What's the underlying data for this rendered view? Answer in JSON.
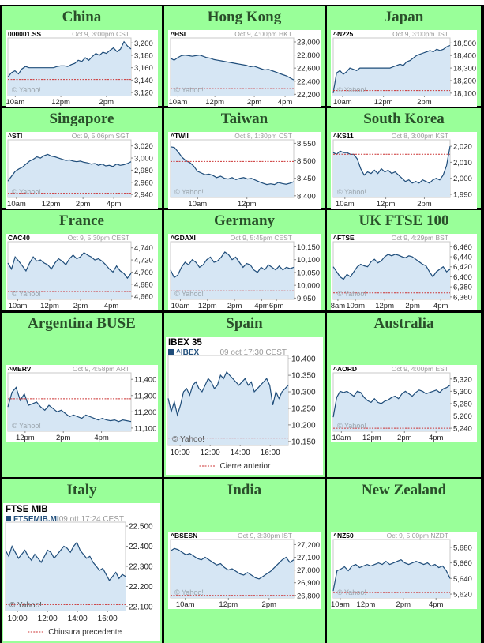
{
  "charts": [
    {
      "region": "China",
      "symbol": "000001.SS",
      "date": "Oct 9, 3:00pm CST",
      "yticks": [
        "3,200",
        "3,180",
        "3,160",
        "3,140",
        "3,120"
      ],
      "ytick_vals": [
        3200,
        3180,
        3160,
        3140,
        3120
      ],
      "ylim": [
        3115,
        3208
      ],
      "xticks": [
        "10am",
        "12pm",
        "2pm"
      ],
      "xtick_pos": [
        0.06,
        0.43,
        0.8
      ],
      "prev_close": 3141,
      "watermark": "© Yahoo!",
      "values": [
        3145,
        3152,
        3155,
        3150,
        3158,
        3162,
        3160,
        3160,
        3160,
        3160,
        3160,
        3160,
        3160,
        3160,
        3162,
        3163,
        3163,
        3162,
        3165,
        3167,
        3172,
        3170,
        3176,
        3172,
        3178,
        3183,
        3180,
        3185,
        3183,
        3188,
        3192,
        3186,
        3190,
        3202,
        3195,
        3190
      ]
    },
    {
      "region": "Hong Kong",
      "symbol": "^HSI",
      "date": "Oct 9, 4:00pm HKT",
      "yticks": [
        "23,000",
        "22,800",
        "22,600",
        "22,400",
        "22,200"
      ],
      "ytick_vals": [
        23000,
        22800,
        22600,
        22400,
        22200
      ],
      "ylim": [
        22180,
        23060
      ],
      "xticks": [
        "10am",
        "12pm",
        "2pm",
        "4pm"
      ],
      "xtick_pos": [
        0.06,
        0.36,
        0.68,
        0.93
      ],
      "prev_close": 22290,
      "watermark": "© Yahoo!",
      "values": [
        22750,
        22720,
        22760,
        22790,
        22800,
        22790,
        22780,
        22790,
        22800,
        22780,
        22760,
        22750,
        22730,
        22720,
        22710,
        22700,
        22690,
        22680,
        22670,
        22660,
        22650,
        22640,
        22620,
        22630,
        22610,
        22590,
        22570,
        22580,
        22560,
        22540,
        22520,
        22500,
        22480,
        22450,
        22420
      ]
    },
    {
      "region": "Japan",
      "symbol": "^N225",
      "date": "Oct 9, 3:00pm JST",
      "yticks": [
        "18,500",
        "18,400",
        "18,300",
        "18,200",
        "18,100"
      ],
      "ytick_vals": [
        18500,
        18400,
        18300,
        18200,
        18100
      ],
      "ylim": [
        18080,
        18540
      ],
      "xticks": [
        "10am",
        "12pm",
        "2pm"
      ],
      "xtick_pos": [
        0.08,
        0.43,
        0.78
      ],
      "prev_close": 18120,
      "watermark": "© Yahoo!",
      "values": [
        18100,
        18260,
        18280,
        18250,
        18270,
        18300,
        18290,
        18280,
        18300,
        18300,
        18300,
        18300,
        18300,
        18300,
        18300,
        18300,
        18300,
        18300,
        18310,
        18320,
        18330,
        18320,
        18350,
        18360,
        18380,
        18400,
        18410,
        18420,
        18430,
        18440,
        18430,
        18450,
        18440,
        18450,
        18470,
        18480
      ]
    },
    {
      "region": "Singapore",
      "symbol": "^STI",
      "date": "Oct 9, 5:06pm SGT",
      "yticks": [
        "3,020",
        "3,000",
        "2,980",
        "2,960",
        "2,940"
      ],
      "ytick_vals": [
        3020,
        3000,
        2980,
        2960,
        2940
      ],
      "ylim": [
        2935,
        3030
      ],
      "xticks": [
        "10am",
        "12pm",
        "2pm",
        "4pm"
      ],
      "xtick_pos": [
        0.07,
        0.35,
        0.61,
        0.86
      ],
      "prev_close": 2942,
      "watermark": "© Yahoo!",
      "values": [
        2962,
        2970,
        2978,
        2982,
        2985,
        2990,
        2995,
        2998,
        3002,
        3000,
        3004,
        3006,
        3003,
        3002,
        3000,
        2998,
        2996,
        2997,
        2995,
        2994,
        2995,
        2993,
        2992,
        2990,
        2991,
        2988,
        2990,
        2987,
        2988,
        2986,
        2990,
        2988,
        2989,
        2991,
        2994
      ]
    },
    {
      "region": "Taiwan",
      "symbol": "^TWII",
      "date": "Oct 8, 1:30pm CST",
      "yticks": [
        "8,550",
        "8,500",
        "8,450",
        "8,400"
      ],
      "ytick_vals": [
        8550,
        8500,
        8450,
        8400
      ],
      "ylim": [
        8395,
        8560
      ],
      "xticks": [
        "10am",
        "12pm"
      ],
      "xtick_pos": [
        0.22,
        0.62
      ],
      "prev_close": 8498,
      "watermark": "© Yahoo!",
      "values": [
        8540,
        8538,
        8525,
        8510,
        8500,
        8495,
        8485,
        8470,
        8465,
        8460,
        8462,
        8458,
        8452,
        8456,
        8450,
        8448,
        8452,
        8446,
        8450,
        8452,
        8448,
        8450,
        8445,
        8440,
        8436,
        8432,
        8434,
        8432,
        8438,
        8435,
        8433,
        8436,
        8440
      ]
    },
    {
      "region": "South Korea",
      "symbol": "^KS11",
      "date": "Oct 8, 3:00pm KST",
      "yticks": [
        "2,020",
        "2,010",
        "2,000",
        "1,990"
      ],
      "ytick_vals": [
        2020,
        2010,
        2000,
        1990
      ],
      "ylim": [
        1988,
        2024
      ],
      "xticks": [
        "10am",
        "12pm",
        "2pm"
      ],
      "xtick_pos": [
        0.1,
        0.45,
        0.78
      ],
      "prev_close": 2015,
      "watermark": "© Yahoo!",
      "values": [
        2016,
        2015,
        2017,
        2016,
        2016,
        2015,
        2015,
        2012,
        2006,
        2002,
        2004,
        2003,
        2005,
        2003,
        2006,
        2004,
        2005,
        2003,
        2004,
        2002,
        2000,
        1998,
        1999,
        1997,
        1998,
        1997,
        1999,
        1998,
        1997,
        1999,
        2000,
        1999,
        2002,
        2008,
        2020
      ]
    },
    {
      "region": "France",
      "symbol": "CAC40",
      "date": "Oct 9, 5:30pm CEST",
      "yticks": [
        "4,740",
        "4,720",
        "4,700",
        "4,680",
        "4,660"
      ],
      "ytick_vals": [
        4740,
        4720,
        4700,
        4680,
        4660
      ],
      "ylim": [
        4655,
        4750
      ],
      "xticks": [
        "10am",
        "12pm",
        "2pm",
        "4pm"
      ],
      "xtick_pos": [
        0.08,
        0.34,
        0.59,
        0.84
      ],
      "prev_close": 4668,
      "watermark": "© Yahoo!",
      "values": [
        4715,
        4705,
        4725,
        4718,
        4710,
        4702,
        4715,
        4725,
        4718,
        4720,
        4715,
        4712,
        4705,
        4715,
        4722,
        4718,
        4712,
        4722,
        4728,
        4722,
        4725,
        4732,
        4728,
        4725,
        4720,
        4722,
        4718,
        4712,
        4705,
        4700,
        4710,
        4702,
        4698,
        4690,
        4698
      ]
    },
    {
      "region": "Germany",
      "symbol": "^GDAXI",
      "date": "Oct 9, 5:45pm CEST",
      "yticks": [
        "10,150",
        "10,100",
        "10,050",
        "10,000",
        "9,950"
      ],
      "ytick_vals": [
        10150,
        10100,
        10050,
        10000,
        9950
      ],
      "ylim": [
        9945,
        10170
      ],
      "xticks": [
        "10am",
        "12pm",
        "2pm",
        "4pm",
        "6pm"
      ],
      "xtick_pos": [
        0.08,
        0.3,
        0.52,
        0.74,
        0.86
      ],
      "prev_close": 9978,
      "watermark": "© Yahoo!",
      "values": [
        10060,
        10030,
        10040,
        10070,
        10090,
        10080,
        10100,
        10090,
        10070,
        10080,
        10100,
        10110,
        10090,
        10095,
        10110,
        10130,
        10120,
        10100,
        10110,
        10090,
        10070,
        10085,
        10080,
        10060,
        10050,
        10070,
        10060,
        10080,
        10070,
        10060,
        10075,
        10060,
        10070,
        10065,
        10070
      ]
    },
    {
      "region": "UK FTSE 100",
      "symbol": "^FTSE",
      "date": "Oct 9, 4:29pm BST",
      "yticks": [
        "6,460",
        "6,440",
        "6,420",
        "6,400",
        "6,380",
        "6,360"
      ],
      "ytick_vals": [
        6460,
        6440,
        6420,
        6400,
        6380,
        6360
      ],
      "ylim": [
        6355,
        6470
      ],
      "xticks": [
        "8am",
        "10am",
        "12pm",
        "2pm",
        "4pm"
      ],
      "xtick_pos": [
        0.04,
        0.19,
        0.44,
        0.68,
        0.92
      ],
      "prev_close": 6368,
      "watermark": "© Yahoo!",
      "values": [
        6420,
        6410,
        6400,
        6395,
        6405,
        6400,
        6410,
        6420,
        6425,
        6422,
        6420,
        6430,
        6435,
        6428,
        6432,
        6440,
        6445,
        6442,
        6445,
        6443,
        6440,
        6438,
        6442,
        6440,
        6435,
        6430,
        6425,
        6422,
        6410,
        6400,
        6410,
        6415,
        6420,
        6410,
        6415
      ]
    },
    {
      "region": "Argentina BUSE",
      "symbol": "^MERV",
      "date": "Oct 9, 4:58pm ART",
      "yticks": [
        "11,400",
        "11,300",
        "11,200",
        "11,100"
      ],
      "ytick_vals": [
        11400,
        11300,
        11200,
        11100
      ],
      "ylim": [
        11080,
        11440
      ],
      "xticks": [
        "12pm",
        "2pm",
        "4pm"
      ],
      "xtick_pos": [
        0.14,
        0.45,
        0.76
      ],
      "prev_close": 11280,
      "watermark": "© Yahoo!",
      "values": [
        11230,
        11320,
        11350,
        11270,
        11310,
        11240,
        11250,
        11260,
        11230,
        11210,
        11240,
        11220,
        11200,
        11210,
        11190,
        11170,
        11180,
        11170,
        11160,
        11180,
        11170,
        11160,
        11150,
        11160,
        11150,
        11145,
        11150,
        11140,
        11150,
        11145,
        11140
      ]
    },
    {
      "region": "Spain",
      "symbol": "^IBEX",
      "date": "09 oct 17:30 CEST",
      "title": "IBEX 35",
      "legend": "Cierre anterior",
      "yticks": [
        "10.400",
        "10.350",
        "10.300",
        "10.250",
        "10.200",
        "10.150"
      ],
      "ytick_vals": [
        10400,
        10350,
        10300,
        10250,
        10200,
        10150
      ],
      "ylim": [
        10140,
        10410
      ],
      "xticks": [
        "10:00",
        "12:00",
        "14:00",
        "16:00"
      ],
      "xtick_pos": [
        0.1,
        0.35,
        0.6,
        0.85
      ],
      "prev_close": 10160,
      "watermark": "© Yahoo!",
      "values": [
        10280,
        10240,
        10270,
        10230,
        10260,
        10300,
        10310,
        10290,
        10320,
        10330,
        10310,
        10300,
        10320,
        10340,
        10330,
        10310,
        10320,
        10350,
        10340,
        10360,
        10350,
        10340,
        10330,
        10320,
        10330,
        10340,
        10320,
        10330,
        10300,
        10310,
        10320,
        10330,
        10340,
        10320,
        10260,
        10300,
        10280,
        10300,
        10310,
        10320
      ]
    },
    {
      "region": "Australia",
      "symbol": "^AORD",
      "date": "Oct 9, 4:00pm EST",
      "yticks": [
        "5,320",
        "5,300",
        "5,280",
        "5,260",
        "5,240"
      ],
      "ytick_vals": [
        5320,
        5300,
        5280,
        5260,
        5240
      ],
      "ylim": [
        5235,
        5330
      ],
      "xticks": [
        "10am",
        "12pm",
        "2pm",
        "4pm"
      ],
      "xtick_pos": [
        0.07,
        0.33,
        0.61,
        0.88
      ],
      "prev_close": 5240,
      "watermark": "© Yahoo!",
      "values": [
        5258,
        5290,
        5300,
        5298,
        5300,
        5296,
        5292,
        5300,
        5298,
        5290,
        5285,
        5282,
        5288,
        5282,
        5280,
        5284,
        5286,
        5290,
        5292,
        5288,
        5296,
        5300,
        5296,
        5292,
        5298,
        5302,
        5300,
        5296,
        5298,
        5300,
        5302,
        5298,
        5304,
        5306,
        5310
      ]
    },
    {
      "region": "Italy",
      "symbol": "FTSEMIB.MI",
      "date": "09 ott 17:24 CEST",
      "title": "FTSE MIB",
      "legend": "Chiusura precedente",
      "yticks": [
        "22.500",
        "22.400",
        "22.300",
        "22.200",
        "22.100"
      ],
      "ytick_vals": [
        22500,
        22400,
        22300,
        22200,
        22100
      ],
      "ylim": [
        22080,
        22520
      ],
      "xticks": [
        "10:00",
        "12:00",
        "14:00",
        "16:00"
      ],
      "xtick_pos": [
        0.1,
        0.35,
        0.6,
        0.85
      ],
      "prev_close": 22110,
      "watermark": "© Yahoo!",
      "values": [
        22380,
        22350,
        22400,
        22370,
        22340,
        22360,
        22380,
        22350,
        22330,
        22360,
        22340,
        22320,
        22350,
        22380,
        22370,
        22340,
        22360,
        22380,
        22400,
        22390,
        22370,
        22400,
        22420,
        22380,
        22360,
        22340,
        22350,
        22320,
        22300,
        22280,
        22290,
        22260,
        22230,
        22250,
        22270,
        22240,
        22260,
        22250
      ]
    },
    {
      "region": "India",
      "symbol": "^BSESN",
      "date": "Oct 9, 3:30pm IST",
      "yticks": [
        "27,200",
        "27,100",
        "27,000",
        "26,900",
        "26,800"
      ],
      "ytick_vals": [
        27200,
        27100,
        27000,
        26900,
        26800
      ],
      "ylim": [
        26780,
        27240
      ],
      "xticks": [
        "10am",
        "12pm",
        "2pm"
      ],
      "xtick_pos": [
        0.12,
        0.47,
        0.8
      ],
      "prev_close": 26800,
      "watermark": "© Yahoo!",
      "values": [
        27150,
        27170,
        27160,
        27140,
        27120,
        27130,
        27110,
        27090,
        27080,
        27100,
        27080,
        27060,
        27040,
        27050,
        27020,
        27000,
        27010,
        26990,
        26970,
        26960,
        26980,
        26960,
        26940,
        26930,
        26950,
        26970,
        26990,
        27020,
        27050,
        27080,
        27100,
        27060,
        27080
      ]
    },
    {
      "region": "New Zealand",
      "symbol": "^NZ50",
      "date": "Oct 9, 5:00pm NZDT",
      "yticks": [
        "5,680",
        "5,660",
        "5,640",
        "5,620"
      ],
      "ytick_vals": [
        5680,
        5660,
        5640,
        5620
      ],
      "ylim": [
        5615,
        5690
      ],
      "xticks": [
        "10am",
        "12pm",
        "2pm",
        "4pm"
      ],
      "xtick_pos": [
        0.06,
        0.28,
        0.6,
        0.88
      ],
      "prev_close": 5622,
      "watermark": "© Yahoo!",
      "values": [
        5624,
        5650,
        5652,
        5655,
        5650,
        5656,
        5658,
        5654,
        5656,
        5658,
        5656,
        5658,
        5660,
        5658,
        5662,
        5658,
        5660,
        5662,
        5664,
        5660,
        5658,
        5660,
        5662,
        5660,
        5658,
        5660,
        5656,
        5658,
        5654,
        5656,
        5650,
        5640
      ]
    }
  ]
}
